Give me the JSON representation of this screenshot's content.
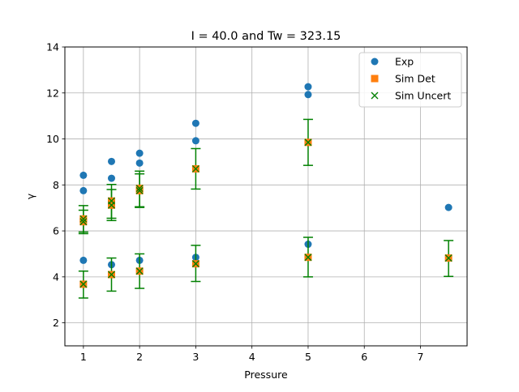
{
  "chart_data": {
    "type": "scatter",
    "title": "I = 40.0 and Tw = 323.15",
    "xlabel": "Pressure",
    "ylabel": "γ",
    "xlim": [
      0.67,
      7.83
    ],
    "ylim": [
      1,
      14
    ],
    "xticks": [
      1,
      2,
      3,
      4,
      5,
      6,
      7
    ],
    "yticks": [
      2,
      4,
      6,
      8,
      10,
      12,
      14
    ],
    "grid": true,
    "legend_position": "top-right",
    "colors": {
      "exp": "#1f77b4",
      "sim_det": "#ff7f0e",
      "sim_uncert": "#008000",
      "errorbar": "#008000"
    },
    "series": [
      {
        "name": "Exp",
        "marker": "circle",
        "points": [
          [
            1,
            8.42
          ],
          [
            1,
            7.75
          ],
          [
            1,
            4.72
          ],
          [
            1.5,
            9.02
          ],
          [
            1.5,
            8.29
          ],
          [
            1.5,
            4.53
          ],
          [
            2,
            9.38
          ],
          [
            2,
            8.95
          ],
          [
            2,
            4.72
          ],
          [
            3,
            10.68
          ],
          [
            3,
            9.92
          ],
          [
            3,
            4.85
          ],
          [
            5,
            12.27
          ],
          [
            5,
            11.93
          ],
          [
            5,
            5.42
          ],
          [
            7.5,
            7.02
          ]
        ]
      },
      {
        "name": "Sim Det",
        "marker": "square",
        "points": [
          [
            1,
            6.52
          ],
          [
            1,
            6.4
          ],
          [
            1,
            3.68
          ],
          [
            1.5,
            7.3
          ],
          [
            1.5,
            7.12
          ],
          [
            1.5,
            4.1
          ],
          [
            2,
            7.85
          ],
          [
            2,
            7.75
          ],
          [
            2,
            4.25
          ],
          [
            3,
            8.7
          ],
          [
            3,
            4.57
          ],
          [
            5,
            9.85
          ],
          [
            5,
            4.85
          ],
          [
            7.5,
            4.82
          ]
        ]
      },
      {
        "name": "Sim Uncert",
        "marker": "x",
        "points": [
          [
            1,
            6.52,
            5.95,
            7.1
          ],
          [
            1,
            6.4,
            5.88,
            6.9
          ],
          [
            1,
            3.68,
            3.08,
            4.25
          ],
          [
            1.5,
            7.3,
            6.55,
            8.02
          ],
          [
            1.5,
            7.12,
            6.45,
            7.8
          ],
          [
            1.5,
            4.1,
            3.38,
            4.82
          ],
          [
            2,
            7.85,
            7.05,
            8.6
          ],
          [
            2,
            7.75,
            7.02,
            8.48
          ],
          [
            2,
            4.25,
            3.5,
            5.0
          ],
          [
            3,
            8.7,
            7.82,
            9.58
          ],
          [
            3,
            4.57,
            3.8,
            5.37
          ],
          [
            5,
            9.85,
            8.85,
            10.85
          ],
          [
            5,
            4.85,
            4.0,
            5.72
          ],
          [
            7.5,
            4.82,
            4.02,
            5.58
          ]
        ]
      }
    ]
  }
}
